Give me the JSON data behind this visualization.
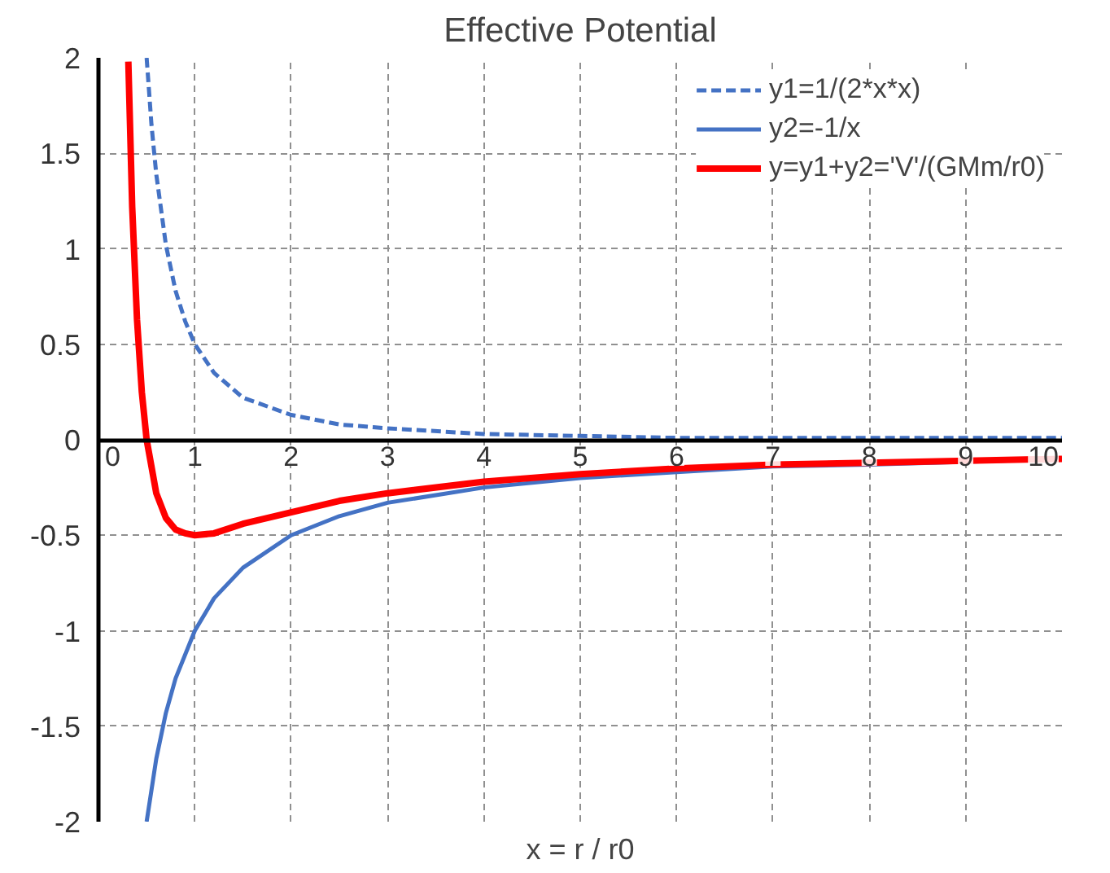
{
  "chart_data": {
    "type": "line",
    "title": "Effective Potential",
    "xlabel": "x = r / r0",
    "xlim": [
      0,
      10
    ],
    "ylim": [
      -2,
      2
    ],
    "xticks": [
      0,
      1,
      2,
      3,
      4,
      5,
      6,
      7,
      8,
      9,
      10
    ],
    "yticks": [
      -2,
      -1.5,
      -1,
      -0.5,
      0,
      0.5,
      1,
      1.5,
      2
    ],
    "grid": true,
    "legend": "top right",
    "marker": "none",
    "series": [
      {
        "name": "y1=1/(2*x*x)",
        "color": "#4472c4",
        "line_style": "dashed",
        "x": [
          0.5,
          0.55,
          0.6,
          0.7,
          0.8,
          0.9,
          1,
          1.2,
          1.5,
          2,
          2.5,
          3,
          4,
          5,
          6,
          7,
          8,
          9,
          10
        ],
        "values": [
          2,
          1.65,
          1.39,
          1.02,
          0.78,
          0.62,
          0.5,
          0.35,
          0.22,
          0.13,
          0.08,
          0.06,
          0.03,
          0.02,
          0.01,
          0.01,
          0.01,
          0.01,
          0.01
        ]
      },
      {
        "name": "y2=-1/x",
        "color": "#4472c4",
        "line_style": "solid",
        "x": [
          0.5,
          0.6,
          0.7,
          0.8,
          1,
          1.2,
          1.5,
          2,
          2.5,
          3,
          4,
          5,
          6,
          7,
          8,
          10
        ],
        "values": [
          -2,
          -1.67,
          -1.43,
          -1.25,
          -1,
          -0.83,
          -0.67,
          -0.5,
          -0.4,
          -0.33,
          -0.25,
          -0.2,
          -0.17,
          -0.14,
          -0.13,
          -0.1
        ]
      },
      {
        "name": "y=y1+y2='V'/(GMm/r0)",
        "color": "#ff0000",
        "line_style": "solid",
        "x": [
          0.31,
          0.35,
          0.4,
          0.45,
          0.5,
          0.6,
          0.7,
          0.8,
          0.9,
          1,
          1.2,
          1.5,
          2,
          2.5,
          3,
          4,
          5,
          6,
          7,
          8,
          10
        ],
        "values": [
          1.98,
          1.22,
          0.63,
          0.25,
          0,
          -0.28,
          -0.41,
          -0.47,
          -0.49,
          -0.5,
          -0.49,
          -0.44,
          -0.38,
          -0.32,
          -0.28,
          -0.22,
          -0.18,
          -0.15,
          -0.13,
          -0.12,
          -0.1
        ]
      }
    ]
  }
}
